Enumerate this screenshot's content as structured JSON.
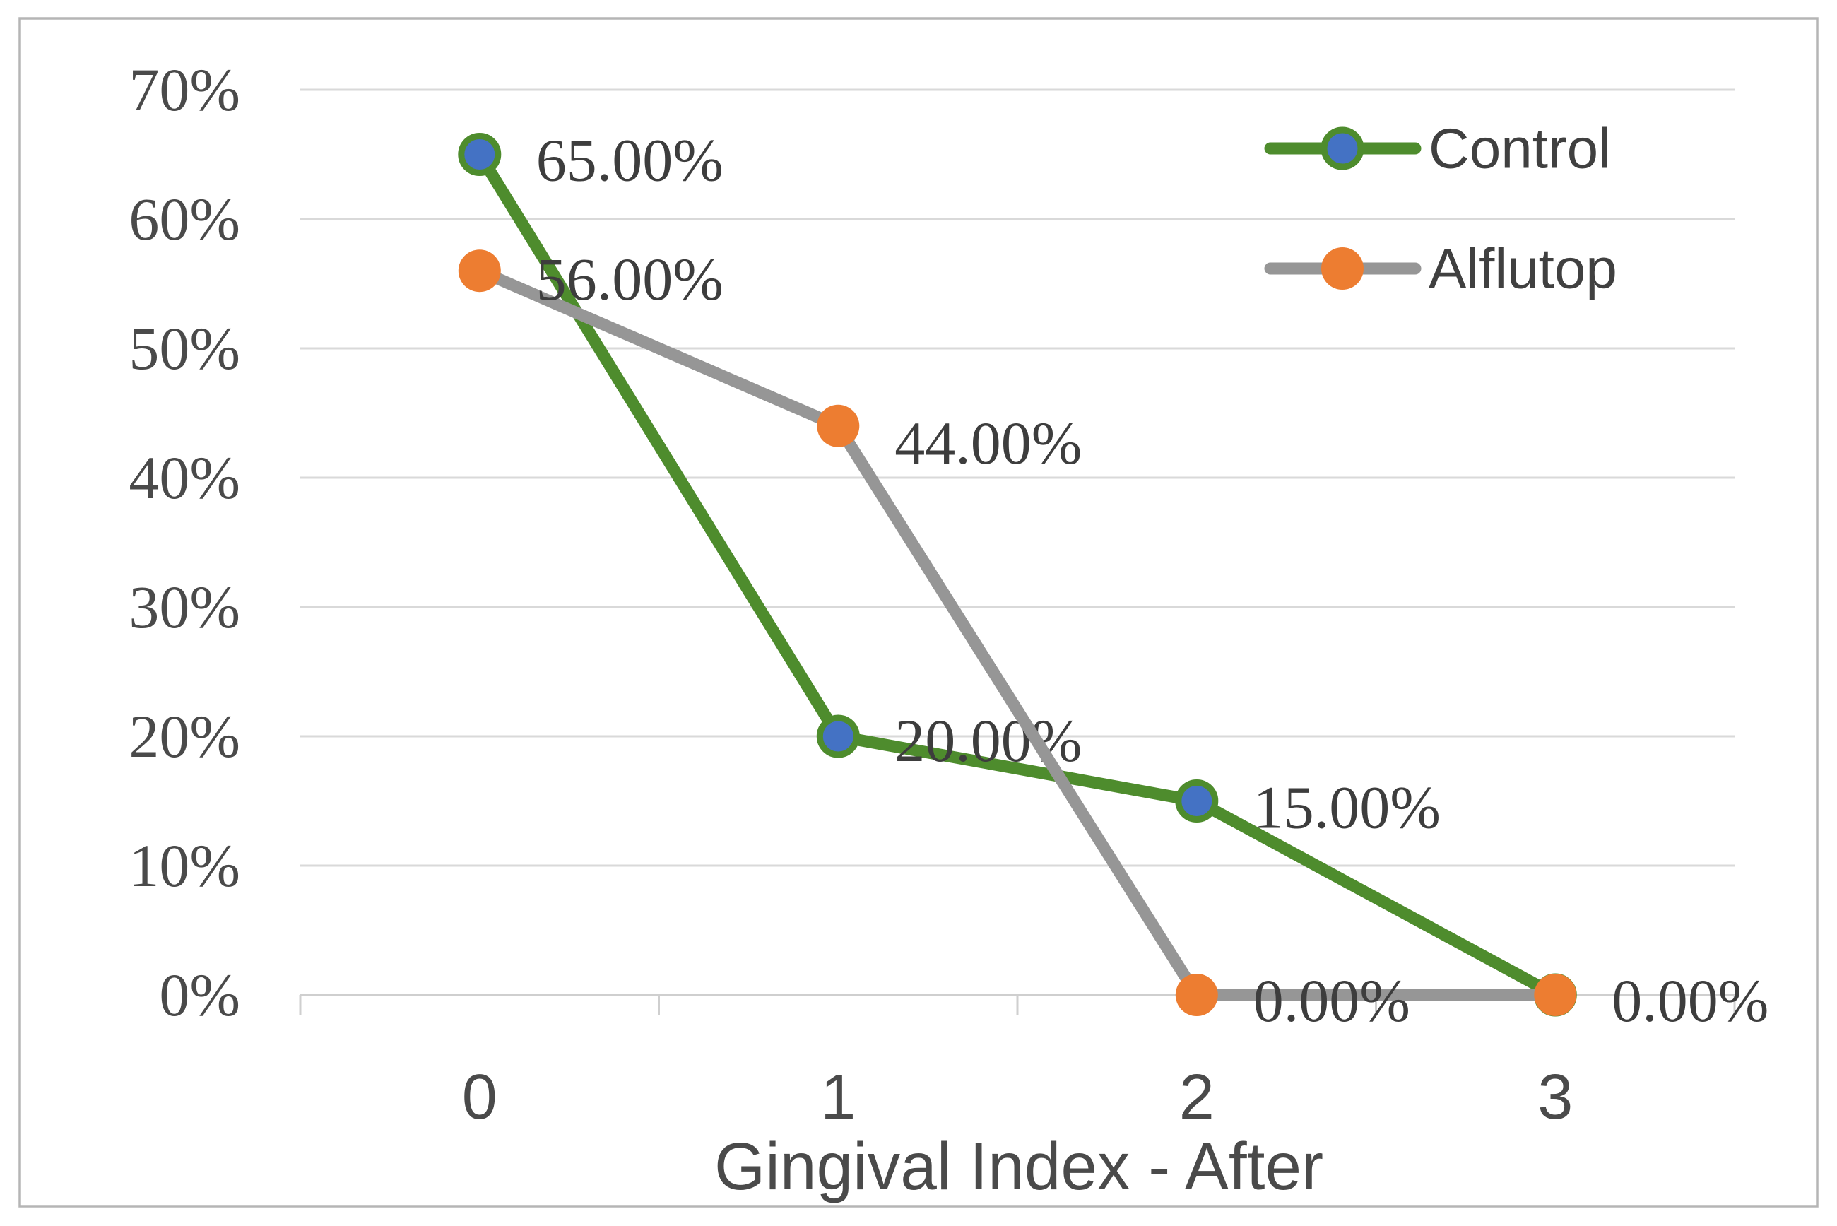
{
  "figure": {
    "background": "#ffffff",
    "border_color": "#b5b5b5"
  },
  "chart_data": {
    "type": "line",
    "title": "",
    "xlabel": "Gingival Index  - After",
    "ylabel": "",
    "categories": [
      "0",
      "1",
      "2",
      "3"
    ],
    "y_axis": {
      "min": 0,
      "max": 70,
      "step": 10,
      "tick_labels": [
        "0%",
        "10%",
        "20%",
        "30%",
        "40%",
        "50%",
        "60%",
        "70%"
      ]
    },
    "grid": true,
    "legend": {
      "position": "top-right",
      "entries": [
        "Control",
        "Alflutop"
      ]
    },
    "series": [
      {
        "name": "Control",
        "values": [
          65,
          20,
          15,
          0
        ],
        "data_labels": [
          "65.00%",
          "20.00%",
          "15.00%",
          null
        ],
        "line_color": "#4e8c2d",
        "marker_color": "#4472c4",
        "marker_outline": "#4e8c2d"
      },
      {
        "name": "Alflutop",
        "values": [
          56,
          44,
          0,
          0
        ],
        "data_labels": [
          "56.00%",
          "44.00%",
          "0.00%",
          "0.00%"
        ],
        "line_color": "#969696",
        "marker_color": "#ed7d31",
        "marker_outline": null
      }
    ],
    "colors": {
      "gridline": "#d9d9d9",
      "axis_line": "#cfcfcf",
      "tick_text": "#4a4a4a",
      "data_label_text": "#3d3d3d",
      "title_text": "#4a4a4a",
      "legend_text": "#404040"
    }
  }
}
